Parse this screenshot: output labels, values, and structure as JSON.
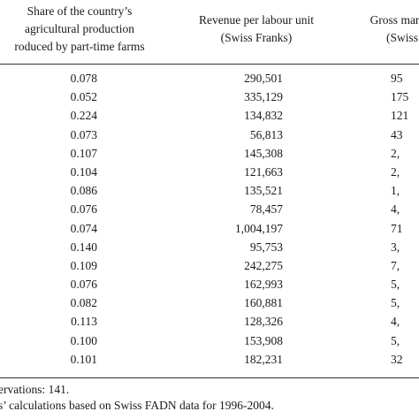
{
  "headers": {
    "col1_lines": [
      "Share of the country’s",
      "agricultural production",
      "roduced by part-time farms"
    ],
    "col2_lines": [
      "Revenue per labour unit",
      "(Swiss Franks)"
    ],
    "col3_lines": [
      "Gross margin",
      "(Swiss"
    ]
  },
  "rows": [
    {
      "share": "0.078",
      "revenue": "290,501",
      "margin": "95"
    },
    {
      "share": "0.052",
      "revenue": "335,129",
      "margin": "175"
    },
    {
      "share": "0.224",
      "revenue": "134,832",
      "margin": "121"
    },
    {
      "share": "0.073",
      "revenue": "56,813",
      "margin": "43"
    },
    {
      "share": "0.107",
      "revenue": "145,308",
      "margin": "2,"
    },
    {
      "share": "0.104",
      "revenue": "121,663",
      "margin": "2,"
    },
    {
      "share": "0.086",
      "revenue": "135,521",
      "margin": "1,"
    },
    {
      "share": "0.076",
      "revenue": "78,457",
      "margin": "4,"
    },
    {
      "share": "0.074",
      "revenue": "1,004,197",
      "margin": "71"
    },
    {
      "share": "0.140",
      "revenue": "95,753",
      "margin": "3,"
    },
    {
      "share": "0.109",
      "revenue": "242,275",
      "margin": "7,"
    },
    {
      "share": "0.076",
      "revenue": "162,993",
      "margin": "5,"
    },
    {
      "share": "0.082",
      "revenue": "160,881",
      "margin": "5,"
    },
    {
      "share": "0.113",
      "revenue": "128,326",
      "margin": "4,"
    },
    {
      "share": "0.100",
      "revenue": "153,908",
      "margin": "5,"
    },
    {
      "share": "0.101",
      "revenue": "182,231",
      "margin": "32"
    }
  ],
  "notes": {
    "observations": "ervations: 141.",
    "source": "s’ calculations based on Swiss FADN data for 1996-2004."
  }
}
